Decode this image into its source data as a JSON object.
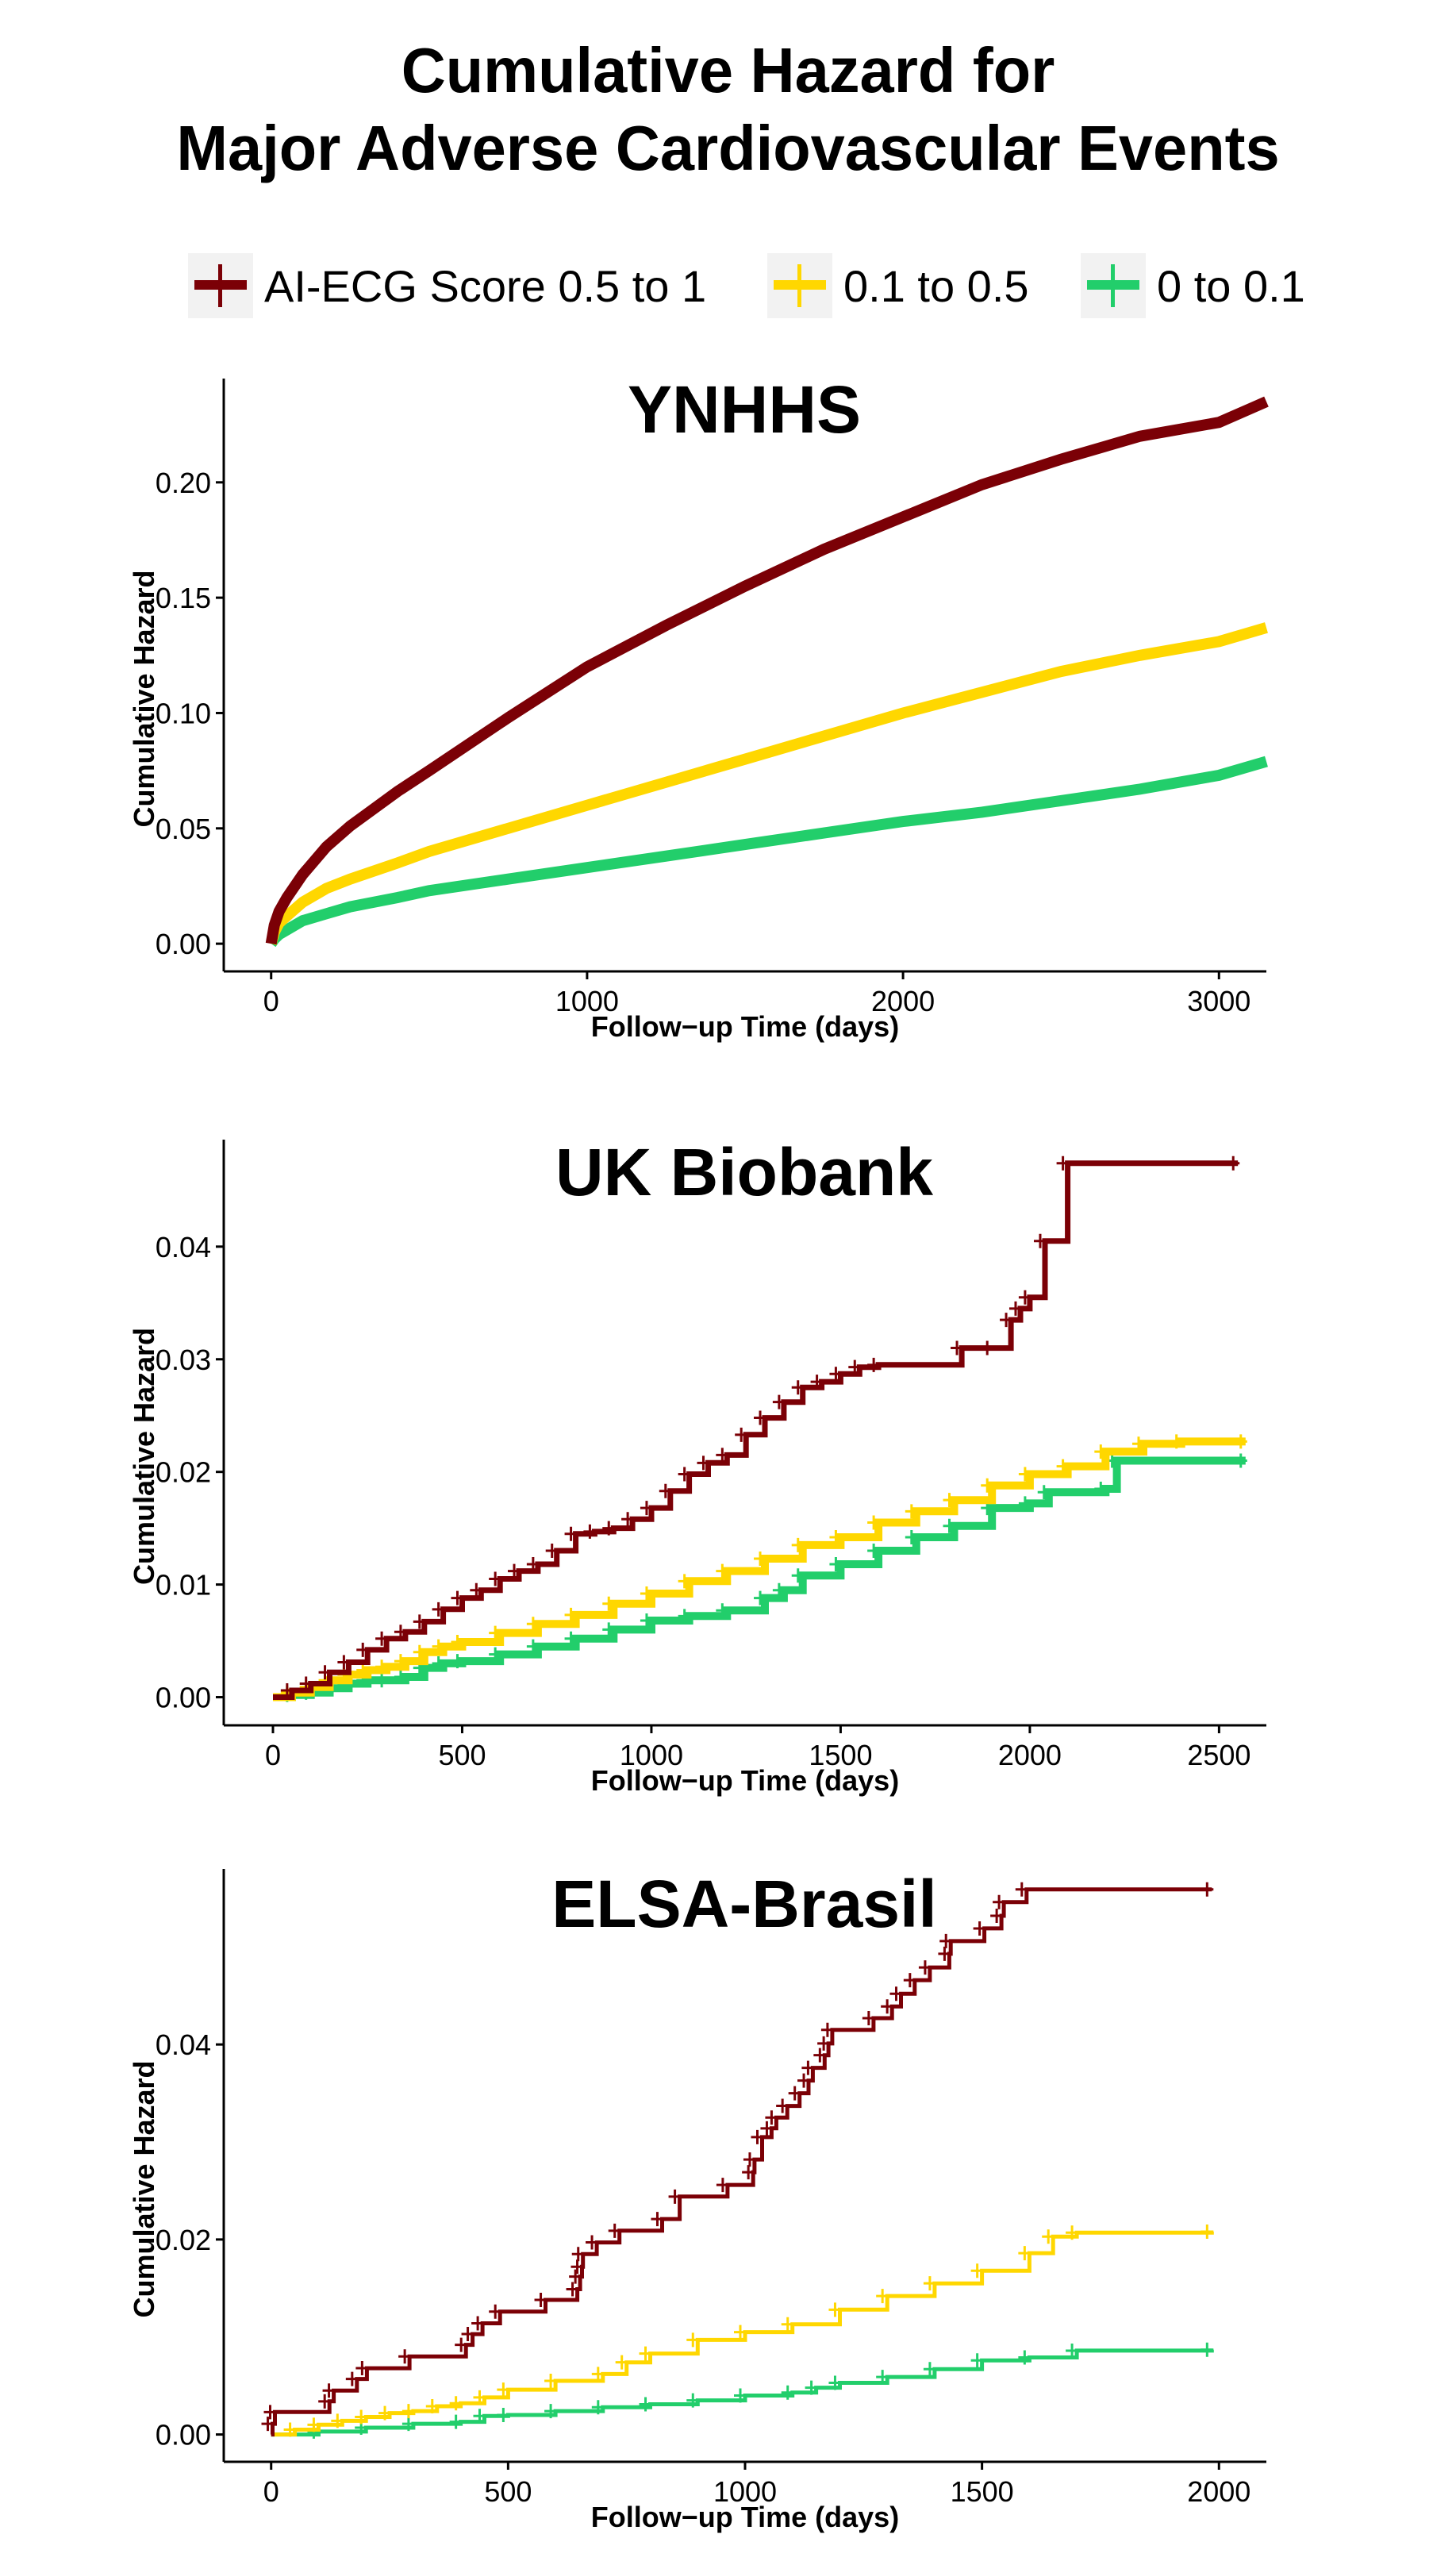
{
  "title_lines": [
    "Cumulative Hazard for",
    "Major Adverse Cardiovascular Events"
  ],
  "legend": [
    {
      "label": "AI-ECG Score 0.5 to 1",
      "color": "#7B0006"
    },
    {
      "label": "0.1 to 0.5",
      "color": "#FFD700"
    },
    {
      "label": "0 to 0.1",
      "color": "#22CE6B"
    }
  ],
  "chart_data": [
    {
      "type": "line",
      "title": "YNHHS",
      "xlabel": "Follow−up Time (days)",
      "ylabel": "Cumulative Hazard",
      "xlim": [
        -150,
        3150
      ],
      "ylim": [
        -0.012,
        0.245
      ],
      "xticks": [
        0,
        1000,
        2000,
        3000
      ],
      "yticks": [
        0.0,
        0.05,
        0.1,
        0.15,
        0.2
      ],
      "ytick_labels": [
        "0.00",
        "0.05",
        "0.10",
        "0.15",
        "0.20"
      ],
      "step": false,
      "series": [
        {
          "name": "AI-ECG Score 0.5 to 1",
          "x": [
            0,
            10,
            25,
            50,
            100,
            175,
            250,
            400,
            500,
            750,
            1000,
            1250,
            1500,
            1750,
            2000,
            2250,
            2500,
            2750,
            3000,
            3150
          ],
          "y": [
            0,
            0.008,
            0.014,
            0.02,
            0.03,
            0.042,
            0.051,
            0.066,
            0.075,
            0.098,
            0.12,
            0.138,
            0.155,
            0.171,
            0.185,
            0.199,
            0.21,
            0.22,
            0.226,
            0.235
          ]
        },
        {
          "name": "0.1 to 0.5",
          "x": [
            0,
            10,
            25,
            50,
            100,
            175,
            250,
            400,
            500,
            750,
            1000,
            1250,
            1500,
            1750,
            2000,
            2250,
            2500,
            2750,
            3000,
            3150
          ],
          "y": [
            0,
            0.005,
            0.009,
            0.012,
            0.018,
            0.024,
            0.028,
            0.035,
            0.04,
            0.05,
            0.06,
            0.07,
            0.08,
            0.09,
            0.1,
            0.109,
            0.118,
            0.125,
            0.131,
            0.137
          ]
        },
        {
          "name": "0 to 0.1",
          "x": [
            0,
            10,
            25,
            50,
            100,
            175,
            250,
            400,
            500,
            750,
            1000,
            1250,
            1500,
            1750,
            2000,
            2250,
            2500,
            2750,
            3000,
            3150
          ],
          "y": [
            0,
            0.002,
            0.004,
            0.006,
            0.01,
            0.013,
            0.016,
            0.02,
            0.023,
            0.028,
            0.033,
            0.038,
            0.043,
            0.048,
            0.053,
            0.057,
            0.062,
            0.067,
            0.073,
            0.079
          ]
        }
      ]
    },
    {
      "type": "line",
      "title": "UK Biobank",
      "xlabel": "Follow−up Time (days)",
      "ylabel": "Cumulative Hazard",
      "xlim": [
        -130,
        2625
      ],
      "ylim": [
        -0.0025,
        0.0495
      ],
      "xticks": [
        0,
        500,
        1000,
        1500,
        2000,
        2500
      ],
      "yticks": [
        0.0,
        0.01,
        0.02,
        0.03,
        0.04
      ],
      "ytick_labels": [
        "0.00",
        "0.01",
        "0.02",
        "0.03",
        "0.04"
      ],
      "step": true,
      "series": [
        {
          "name": "AI-ECG Score 0.5 to 1",
          "x": [
            0,
            50,
            100,
            150,
            200,
            250,
            300,
            350,
            400,
            450,
            500,
            550,
            600,
            650,
            700,
            750,
            800,
            850,
            900,
            950,
            1000,
            1050,
            1100,
            1150,
            1200,
            1250,
            1300,
            1350,
            1400,
            1450,
            1500,
            1550,
            1600,
            1820,
            1900,
            1950,
            1975,
            2000,
            2040,
            2100,
            2550
          ],
          "y": [
            0,
            0.0006,
            0.0012,
            0.0022,
            0.0031,
            0.0042,
            0.0052,
            0.0058,
            0.0067,
            0.0078,
            0.0088,
            0.0095,
            0.0105,
            0.0112,
            0.0118,
            0.013,
            0.0145,
            0.0147,
            0.015,
            0.0158,
            0.0168,
            0.0183,
            0.0198,
            0.0208,
            0.0215,
            0.0233,
            0.0248,
            0.0262,
            0.0275,
            0.028,
            0.0287,
            0.0293,
            0.0295,
            0.031,
            0.031,
            0.0335,
            0.0345,
            0.0355,
            0.0405,
            0.0474,
            0.0474
          ]
        },
        {
          "name": "0.1 to 0.5",
          "x": [
            0,
            50,
            100,
            150,
            200,
            250,
            300,
            350,
            400,
            450,
            500,
            600,
            700,
            800,
            900,
            1000,
            1100,
            1200,
            1300,
            1400,
            1500,
            1600,
            1700,
            1800,
            1900,
            2000,
            2100,
            2200,
            2300,
            2400,
            2570
          ],
          "y": [
            0,
            0.0004,
            0.0009,
            0.0015,
            0.002,
            0.0024,
            0.0027,
            0.0032,
            0.004,
            0.0045,
            0.0049,
            0.0057,
            0.0065,
            0.0073,
            0.0083,
            0.0092,
            0.0103,
            0.0112,
            0.0123,
            0.0135,
            0.0142,
            0.0155,
            0.0165,
            0.0175,
            0.0188,
            0.0198,
            0.0205,
            0.0218,
            0.0225,
            0.0227,
            0.0227
          ]
        },
        {
          "name": "0 to 0.1",
          "x": [
            0,
            50,
            100,
            150,
            200,
            250,
            300,
            350,
            400,
            450,
            500,
            600,
            700,
            800,
            900,
            1000,
            1100,
            1200,
            1300,
            1350,
            1400,
            1500,
            1600,
            1700,
            1800,
            1900,
            2000,
            2050,
            2200,
            2230,
            2570
          ],
          "y": [
            0,
            0.0002,
            0.0004,
            0.0008,
            0.0012,
            0.0015,
            0.0015,
            0.0018,
            0.0026,
            0.003,
            0.0032,
            0.0038,
            0.0045,
            0.0052,
            0.006,
            0.0068,
            0.0072,
            0.0077,
            0.0088,
            0.0095,
            0.0108,
            0.0118,
            0.013,
            0.0142,
            0.0152,
            0.0168,
            0.0172,
            0.0182,
            0.0185,
            0.021,
            0.021
          ]
        }
      ]
    },
    {
      "type": "line",
      "title": "ELSA-Brasil",
      "xlabel": "Follow−up Time (days)",
      "ylabel": "Cumulative Hazard",
      "xlim": [
        -100,
        2100
      ],
      "ylim": [
        -0.0028,
        0.058
      ],
      "xticks": [
        0,
        500,
        1000,
        1500,
        2000
      ],
      "yticks": [
        0.0,
        0.02,
        0.04
      ],
      "ytick_labels": [
        "0.00",
        "0.02",
        "0.04"
      ],
      "step": true,
      "series": [
        {
          "name": "AI-ECG Score 0.5 to 1",
          "x": [
            0,
            3,
            8,
            123,
            132,
            181,
            202,
            292,
            411,
            425,
            446,
            483,
            579,
            646,
            652,
            656,
            658,
            687,
            735,
            825,
            862,
            963,
            1017,
            1020,
            1036,
            1056,
            1066,
            1089,
            1115,
            1134,
            1143,
            1168,
            1176,
            1184,
            1271,
            1310,
            1329,
            1358,
            1390,
            1431,
            1434,
            1505,
            1541,
            1546,
            1594,
            1985
          ],
          "y": [
            0,
            0.0011,
            0.0023,
            0.0034,
            0.0045,
            0.0057,
            0.0068,
            0.008,
            0.0092,
            0.0103,
            0.0114,
            0.0126,
            0.0138,
            0.0149,
            0.0162,
            0.0172,
            0.0185,
            0.0197,
            0.0209,
            0.0221,
            0.0244,
            0.0256,
            0.0269,
            0.0282,
            0.0305,
            0.0314,
            0.0325,
            0.0337,
            0.035,
            0.0363,
            0.0376,
            0.0389,
            0.0401,
            0.0415,
            0.0427,
            0.0439,
            0.0452,
            0.0466,
            0.0479,
            0.0493,
            0.0506,
            0.0519,
            0.0532,
            0.0546,
            0.0559,
            0.0559
          ]
        },
        {
          "name": "0.1 to 0.5",
          "x": [
            0,
            50,
            100,
            150,
            200,
            250,
            300,
            350,
            400,
            450,
            500,
            600,
            700,
            750,
            800,
            900,
            1000,
            1100,
            1200,
            1300,
            1400,
            1500,
            1600,
            1650,
            1700,
            1985
          ],
          "y": [
            0,
            0.0005,
            0.001,
            0.0014,
            0.0018,
            0.0022,
            0.0024,
            0.0029,
            0.0032,
            0.0038,
            0.0046,
            0.0055,
            0.0062,
            0.0074,
            0.0083,
            0.0097,
            0.0105,
            0.0113,
            0.0128,
            0.0142,
            0.0155,
            0.0168,
            0.0186,
            0.0203,
            0.0207,
            0.0208
          ]
        },
        {
          "name": "0 to 0.1",
          "x": [
            0,
            100,
            200,
            300,
            400,
            450,
            500,
            600,
            700,
            800,
            900,
            1000,
            1100,
            1150,
            1200,
            1300,
            1400,
            1500,
            1600,
            1700,
            1985
          ],
          "y": [
            0,
            0.0003,
            0.0007,
            0.0011,
            0.0013,
            0.0019,
            0.002,
            0.0024,
            0.0028,
            0.0031,
            0.0035,
            0.004,
            0.0043,
            0.0048,
            0.0053,
            0.0059,
            0.0067,
            0.0076,
            0.0079,
            0.0086,
            0.0087
          ]
        }
      ]
    }
  ]
}
